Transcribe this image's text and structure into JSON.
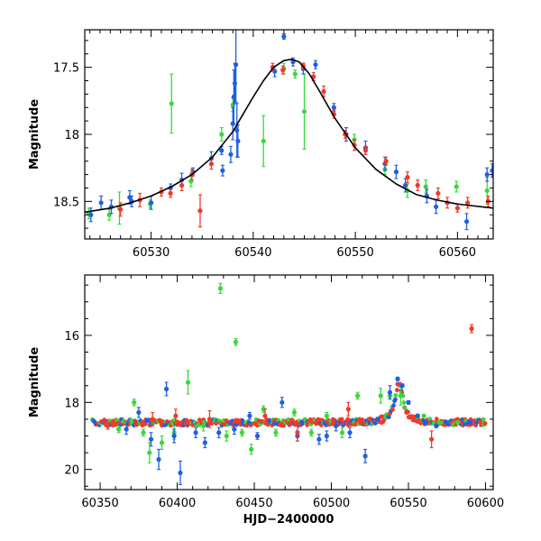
{
  "colors": {
    "green": "#3ad83a",
    "blue": "#1f5fe0",
    "red": "#f03a2a",
    "curve": "#000000"
  },
  "chart_data": [
    {
      "type": "scatter",
      "title": "",
      "xlabel": "",
      "ylabel": "Magnitude",
      "xlim": [
        60523.5,
        60563.5
      ],
      "ylim": [
        18.78,
        17.22
      ],
      "y_inverted": true,
      "xticks": [
        60530,
        60540,
        60550,
        60560
      ],
      "yticks": [
        17.5,
        18,
        18.5
      ],
      "ytick_labels": [
        "17.5",
        "18",
        "18.5"
      ],
      "model_curve": {
        "x": [
          60523.5,
          60526,
          60528,
          60530,
          60532,
          60534,
          60536,
          60538,
          60540,
          60541,
          60542,
          60543,
          60543.8,
          60544.5,
          60545.5,
          60546.5,
          60548,
          60550,
          60552,
          60554,
          60556,
          60558,
          60560,
          60563.5
        ],
        "y": [
          18.58,
          18.55,
          18.51,
          18.46,
          18.39,
          18.3,
          18.17,
          17.98,
          17.72,
          17.6,
          17.5,
          17.45,
          17.44,
          17.46,
          17.55,
          17.68,
          17.88,
          18.1,
          18.26,
          18.37,
          18.45,
          18.49,
          18.52,
          18.55
        ]
      },
      "series": [
        {
          "color": "green",
          "points": [
            {
              "x": 60523.9,
              "y": 18.59,
              "err": 0.04
            },
            {
              "x": 60525.9,
              "y": 18.6,
              "err": 0.04
            },
            {
              "x": 60526.9,
              "y": 18.55,
              "err": 0.12
            },
            {
              "x": 60529.9,
              "y": 18.52,
              "err": 0.03
            },
            {
              "x": 60532.0,
              "y": 17.77,
              "err": 0.22
            },
            {
              "x": 60533.9,
              "y": 18.35,
              "err": 0.04
            },
            {
              "x": 60536.9,
              "y": 18.0,
              "err": 0.05
            },
            {
              "x": 60538.0,
              "y": 17.78,
              "err": 0.05
            },
            {
              "x": 60541.0,
              "y": 18.05,
              "err": 0.19
            },
            {
              "x": 60543.0,
              "y": 17.51,
              "err": 0.04
            },
            {
              "x": 60544.1,
              "y": 17.55,
              "err": 0.03
            },
            {
              "x": 60545.0,
              "y": 17.83,
              "err": 0.28
            },
            {
              "x": 60549.9,
              "y": 18.04,
              "err": 0.04
            },
            {
              "x": 60552.9,
              "y": 18.26,
              "err": 0.04
            },
            {
              "x": 60555.1,
              "y": 18.42,
              "err": 0.05
            },
            {
              "x": 60556.9,
              "y": 18.39,
              "err": 0.05
            },
            {
              "x": 60559.9,
              "y": 18.39,
              "err": 0.04
            },
            {
              "x": 60562.9,
              "y": 18.42,
              "err": 0.1
            }
          ]
        },
        {
          "color": "blue",
          "points": [
            {
              "x": 60524.1,
              "y": 18.6,
              "err": 0.05
            },
            {
              "x": 60525.1,
              "y": 18.51,
              "err": 0.05
            },
            {
              "x": 60526.1,
              "y": 18.54,
              "err": 0.05
            },
            {
              "x": 60527.9,
              "y": 18.47,
              "err": 0.05
            },
            {
              "x": 60528.1,
              "y": 18.5,
              "err": 0.04
            },
            {
              "x": 60530.0,
              "y": 18.51,
              "err": 0.05
            },
            {
              "x": 60531.9,
              "y": 18.4,
              "err": 0.03
            },
            {
              "x": 60533.0,
              "y": 18.34,
              "err": 0.05
            },
            {
              "x": 60534.1,
              "y": 18.28,
              "err": 0.03
            },
            {
              "x": 60535.9,
              "y": 18.18,
              "err": 0.05
            },
            {
              "x": 60536.9,
              "y": 18.12,
              "err": 0.03
            },
            {
              "x": 60537.0,
              "y": 18.27,
              "err": 0.04
            },
            {
              "x": 60537.8,
              "y": 18.15,
              "err": 0.06
            },
            {
              "x": 60538.0,
              "y": 17.92,
              "err": 0.12
            },
            {
              "x": 60538.1,
              "y": 17.72,
              "err": 0.2
            },
            {
              "x": 60538.2,
              "y": 17.62,
              "err": 0.15
            },
            {
              "x": 60538.3,
              "y": 17.48,
              "err": 0.28
            },
            {
              "x": 60538.4,
              "y": 17.97,
              "err": 0.2
            },
            {
              "x": 60538.5,
              "y": 18.05,
              "err": 0.12
            },
            {
              "x": 60542.1,
              "y": 17.53,
              "err": 0.04
            },
            {
              "x": 60543.0,
              "y": 17.27,
              "err": 0.02
            },
            {
              "x": 60543.9,
              "y": 17.46,
              "err": 0.03
            },
            {
              "x": 60544.9,
              "y": 17.51,
              "err": 0.04
            },
            {
              "x": 60546.1,
              "y": 17.48,
              "err": 0.03
            },
            {
              "x": 60547.9,
              "y": 17.8,
              "err": 0.03
            },
            {
              "x": 60549.1,
              "y": 18.0,
              "err": 0.05
            },
            {
              "x": 60551.0,
              "y": 18.1,
              "err": 0.05
            },
            {
              "x": 60552.9,
              "y": 18.22,
              "err": 0.05
            },
            {
              "x": 60554.0,
              "y": 18.28,
              "err": 0.05
            },
            {
              "x": 60554.9,
              "y": 18.38,
              "err": 0.05
            },
            {
              "x": 60557.0,
              "y": 18.46,
              "err": 0.05
            },
            {
              "x": 60557.9,
              "y": 18.54,
              "err": 0.05
            },
            {
              "x": 60560.9,
              "y": 18.65,
              "err": 0.06
            },
            {
              "x": 60562.9,
              "y": 18.3,
              "err": 0.05
            },
            {
              "x": 60563.4,
              "y": 18.27,
              "err": 0.05
            }
          ]
        },
        {
          "color": "red",
          "points": [
            {
              "x": 60527.0,
              "y": 18.56,
              "err": 0.05
            },
            {
              "x": 60528.9,
              "y": 18.49,
              "err": 0.05
            },
            {
              "x": 60531.0,
              "y": 18.43,
              "err": 0.03
            },
            {
              "x": 60531.9,
              "y": 18.44,
              "err": 0.03
            },
            {
              "x": 60533.0,
              "y": 18.38,
              "err": 0.04
            },
            {
              "x": 60534.0,
              "y": 18.3,
              "err": 0.04
            },
            {
              "x": 60534.8,
              "y": 18.57,
              "err": 0.12
            },
            {
              "x": 60535.9,
              "y": 18.22,
              "err": 0.04
            },
            {
              "x": 60541.9,
              "y": 17.5,
              "err": 0.03
            },
            {
              "x": 60542.9,
              "y": 17.52,
              "err": 0.03
            },
            {
              "x": 60544.9,
              "y": 17.49,
              "err": 0.02
            },
            {
              "x": 60545.9,
              "y": 17.57,
              "err": 0.03
            },
            {
              "x": 60546.9,
              "y": 17.68,
              "err": 0.04
            },
            {
              "x": 60547.9,
              "y": 17.85,
              "err": 0.03
            },
            {
              "x": 60549.0,
              "y": 18.0,
              "err": 0.03
            },
            {
              "x": 60549.9,
              "y": 18.08,
              "err": 0.04
            },
            {
              "x": 60551.0,
              "y": 18.12,
              "err": 0.03
            },
            {
              "x": 60553.0,
              "y": 18.2,
              "err": 0.03
            },
            {
              "x": 60555.1,
              "y": 18.32,
              "err": 0.04
            },
            {
              "x": 60556.1,
              "y": 18.38,
              "err": 0.04
            },
            {
              "x": 60558.1,
              "y": 18.44,
              "err": 0.04
            },
            {
              "x": 60559.0,
              "y": 18.51,
              "err": 0.04
            },
            {
              "x": 60560.0,
              "y": 18.55,
              "err": 0.03
            },
            {
              "x": 60561.0,
              "y": 18.51,
              "err": 0.04
            },
            {
              "x": 60563.0,
              "y": 18.5,
              "err": 0.04
            }
          ]
        }
      ]
    },
    {
      "type": "scatter",
      "title": "",
      "xlabel": "HJD−2400000",
      "ylabel": "Magnitude",
      "xlim": [
        60340,
        60605
      ],
      "ylim": [
        20.6,
        14.2
      ],
      "y_inverted": true,
      "xticks": [
        60350,
        60400,
        60450,
        60500,
        60550,
        60600
      ],
      "yticks": [
        16,
        18,
        20
      ],
      "ytick_labels": [
        "16",
        "18",
        "20"
      ],
      "baseline_mag": 18.6,
      "series": [
        {
          "color": "green",
          "points": [
            {
              "x": 60362,
              "y": 18.8,
              "err": 0.1
            },
            {
              "x": 60372,
              "y": 18.0,
              "err": 0.1
            },
            {
              "x": 60378,
              "y": 18.9,
              "err": 0.1
            },
            {
              "x": 60382,
              "y": 19.5,
              "err": 0.3
            },
            {
              "x": 60390,
              "y": 19.2,
              "err": 0.2
            },
            {
              "x": 60398,
              "y": 18.9,
              "err": 0.2
            },
            {
              "x": 60407,
              "y": 17.4,
              "err": 0.35
            },
            {
              "x": 60417,
              "y": 18.7,
              "err": 0.15
            },
            {
              "x": 60428,
              "y": 14.6,
              "err": 0.15
            },
            {
              "x": 60432,
              "y": 19.0,
              "err": 0.15
            },
            {
              "x": 60438,
              "y": 16.2,
              "err": 0.1
            },
            {
              "x": 60442,
              "y": 18.9,
              "err": 0.1
            },
            {
              "x": 60448,
              "y": 19.4,
              "err": 0.15
            },
            {
              "x": 60456,
              "y": 18.2,
              "err": 0.1
            },
            {
              "x": 60464,
              "y": 18.9,
              "err": 0.1
            },
            {
              "x": 60476,
              "y": 18.3,
              "err": 0.1
            },
            {
              "x": 60487,
              "y": 18.9,
              "err": 0.1
            },
            {
              "x": 60497,
              "y": 18.4,
              "err": 0.1
            },
            {
              "x": 60507,
              "y": 18.9,
              "err": 0.15
            },
            {
              "x": 60517,
              "y": 17.8,
              "err": 0.1
            },
            {
              "x": 60532,
              "y": 17.8,
              "err": 0.22
            },
            {
              "x": 60538,
              "y": 17.8,
              "err": 0.05
            },
            {
              "x": 60545,
              "y": 17.8,
              "err": 0.28
            },
            {
              "x": 60560,
              "y": 18.4,
              "err": 0.04
            },
            {
              "x": 60570,
              "y": 18.6,
              "err": 0.05
            },
            {
              "x": 60582,
              "y": 18.6,
              "err": 0.05
            }
          ]
        },
        {
          "color": "blue",
          "points": [
            {
              "x": 60367,
              "y": 18.8,
              "err": 0.15
            },
            {
              "x": 60375,
              "y": 18.3,
              "err": 0.15
            },
            {
              "x": 60383,
              "y": 19.1,
              "err": 0.2
            },
            {
              "x": 60388,
              "y": 19.7,
              "err": 0.3
            },
            {
              "x": 60393,
              "y": 17.6,
              "err": 0.2
            },
            {
              "x": 60398,
              "y": 19.0,
              "err": 0.2
            },
            {
              "x": 60402,
              "y": 20.1,
              "err": 0.35
            },
            {
              "x": 60412,
              "y": 18.9,
              "err": 0.15
            },
            {
              "x": 60418,
              "y": 19.2,
              "err": 0.15
            },
            {
              "x": 60427,
              "y": 18.9,
              "err": 0.15
            },
            {
              "x": 60437,
              "y": 18.8,
              "err": 0.15
            },
            {
              "x": 60447,
              "y": 18.4,
              "err": 0.1
            },
            {
              "x": 60452,
              "y": 19.0,
              "err": 0.1
            },
            {
              "x": 60468,
              "y": 18.0,
              "err": 0.15
            },
            {
              "x": 60478,
              "y": 19.0,
              "err": 0.15
            },
            {
              "x": 60492,
              "y": 19.1,
              "err": 0.15
            },
            {
              "x": 60497,
              "y": 19.0,
              "err": 0.15
            },
            {
              "x": 60503,
              "y": 18.7,
              "err": 0.15
            },
            {
              "x": 60512,
              "y": 18.9,
              "err": 0.15
            },
            {
              "x": 60522,
              "y": 19.6,
              "err": 0.2
            },
            {
              "x": 60530,
              "y": 18.5,
              "err": 0.05
            },
            {
              "x": 60538,
              "y": 17.7,
              "err": 0.2
            },
            {
              "x": 60543,
              "y": 17.3,
              "err": 0.05
            },
            {
              "x": 60546,
              "y": 17.5,
              "err": 0.05
            },
            {
              "x": 60550,
              "y": 18.0,
              "err": 0.05
            },
            {
              "x": 60556,
              "y": 18.4,
              "err": 0.05
            },
            {
              "x": 60561,
              "y": 18.6,
              "err": 0.06
            },
            {
              "x": 60568,
              "y": 18.7,
              "err": 0.05
            },
            {
              "x": 60575,
              "y": 18.6,
              "err": 0.05
            },
            {
              "x": 60590,
              "y": 18.6,
              "err": 0.05
            }
          ]
        },
        {
          "color": "red",
          "points": [
            {
              "x": 60355,
              "y": 18.7,
              "err": 0.1
            },
            {
              "x": 60384,
              "y": 18.5,
              "err": 0.2
            },
            {
              "x": 60399,
              "y": 18.4,
              "err": 0.2
            },
            {
              "x": 60421,
              "y": 18.5,
              "err": 0.25
            },
            {
              "x": 60457,
              "y": 18.4,
              "err": 0.2
            },
            {
              "x": 60478,
              "y": 18.9,
              "err": 0.25
            },
            {
              "x": 60511,
              "y": 18.2,
              "err": 0.2
            },
            {
              "x": 60565,
              "y": 19.1,
              "err": 0.25
            },
            {
              "x": 60591,
              "y": 15.8,
              "err": 0.12
            }
          ]
        }
      ]
    }
  ]
}
